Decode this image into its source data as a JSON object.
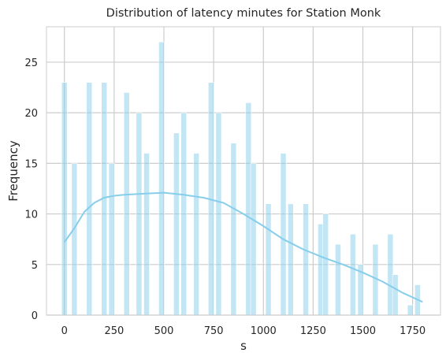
{
  "chart_data": {
    "type": "bar",
    "subtype": "histogram",
    "title": "Distribution of latency minutes for Station Monk",
    "xlabel": "s",
    "ylabel": "Frequency",
    "xlim": [
      -90,
      1890
    ],
    "ylim": [
      0,
      28.5
    ],
    "x_ticks": [
      0,
      250,
      500,
      750,
      1000,
      1250,
      1500,
      1750
    ],
    "y_ticks": [
      0,
      5,
      10,
      15,
      20,
      25
    ],
    "grid": true,
    "bar_color": "#87CEEB",
    "kde_color": "#87CEEB",
    "bins": [
      {
        "x": 0,
        "count": 23
      },
      {
        "x": 50,
        "count": 15
      },
      {
        "x": 125,
        "count": 23
      },
      {
        "x": 200,
        "count": 23
      },
      {
        "x": 237,
        "count": 15
      },
      {
        "x": 313,
        "count": 22
      },
      {
        "x": 375,
        "count": 20
      },
      {
        "x": 413,
        "count": 16
      },
      {
        "x": 488,
        "count": 27
      },
      {
        "x": 563,
        "count": 18
      },
      {
        "x": 600,
        "count": 20
      },
      {
        "x": 663,
        "count": 16
      },
      {
        "x": 737,
        "count": 23
      },
      {
        "x": 775,
        "count": 20
      },
      {
        "x": 850,
        "count": 17
      },
      {
        "x": 925,
        "count": 21
      },
      {
        "x": 950,
        "count": 15
      },
      {
        "x": 1025,
        "count": 11
      },
      {
        "x": 1100,
        "count": 16
      },
      {
        "x": 1137,
        "count": 11
      },
      {
        "x": 1213,
        "count": 11
      },
      {
        "x": 1288,
        "count": 9
      },
      {
        "x": 1313,
        "count": 10
      },
      {
        "x": 1375,
        "count": 7
      },
      {
        "x": 1450,
        "count": 8
      },
      {
        "x": 1488,
        "count": 5
      },
      {
        "x": 1563,
        "count": 7
      },
      {
        "x": 1638,
        "count": 8
      },
      {
        "x": 1663,
        "count": 4
      },
      {
        "x": 1738,
        "count": 1
      },
      {
        "x": 1775,
        "count": 3
      }
    ],
    "kde": [
      {
        "x": 0,
        "y": 7.2
      },
      {
        "x": 50,
        "y": 8.6
      },
      {
        "x": 100,
        "y": 10.2
      },
      {
        "x": 150,
        "y": 11.1
      },
      {
        "x": 200,
        "y": 11.6
      },
      {
        "x": 250,
        "y": 11.8
      },
      {
        "x": 300,
        "y": 11.9
      },
      {
        "x": 400,
        "y": 12.0
      },
      {
        "x": 500,
        "y": 12.1
      },
      {
        "x": 600,
        "y": 11.9
      },
      {
        "x": 700,
        "y": 11.6
      },
      {
        "x": 800,
        "y": 11.1
      },
      {
        "x": 900,
        "y": 10.0
      },
      {
        "x": 1000,
        "y": 8.8
      },
      {
        "x": 1100,
        "y": 7.5
      },
      {
        "x": 1200,
        "y": 6.5
      },
      {
        "x": 1300,
        "y": 5.7
      },
      {
        "x": 1400,
        "y": 5.0
      },
      {
        "x": 1500,
        "y": 4.2
      },
      {
        "x": 1600,
        "y": 3.3
      },
      {
        "x": 1700,
        "y": 2.2
      },
      {
        "x": 1800,
        "y": 1.3
      }
    ]
  }
}
